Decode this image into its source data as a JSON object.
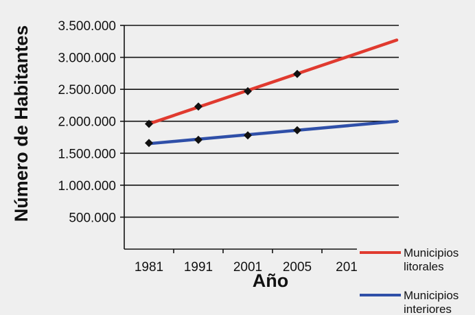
{
  "chart_data": {
    "type": "line",
    "xlabel": "Año",
    "ylabel": "Número de Habitantes",
    "ylim": [
      0,
      3500000
    ],
    "yticks": [
      500000,
      1000000,
      1500000,
      2000000,
      2500000,
      3000000,
      3500000
    ],
    "ytick_labels": [
      "500.000",
      "1.000.000",
      "1.500.000",
      "2.000.000",
      "2.500.000",
      "3.000.000",
      "3.500.000"
    ],
    "categories": [
      "1981",
      "1991",
      "2001",
      "2005",
      "201"
    ],
    "grid": true,
    "legend_position": "bottom-right",
    "series": [
      {
        "name": "Municipios litorales",
        "legend_lines": [
          "Municipios",
          "litorales"
        ],
        "color": "#e03a2f",
        "values": [
          1960000,
          2230000,
          2470000,
          2740000,
          null
        ],
        "trend": [
          1960000,
          3270000
        ]
      },
      {
        "name": "Municipios interiores",
        "legend_lines": [
          "Municipios",
          "interiores"
        ],
        "color": "#2f4fa8",
        "values": [
          1660000,
          1710000,
          1780000,
          1860000,
          null
        ],
        "trend": [
          1650000,
          2000000
        ]
      }
    ]
  }
}
